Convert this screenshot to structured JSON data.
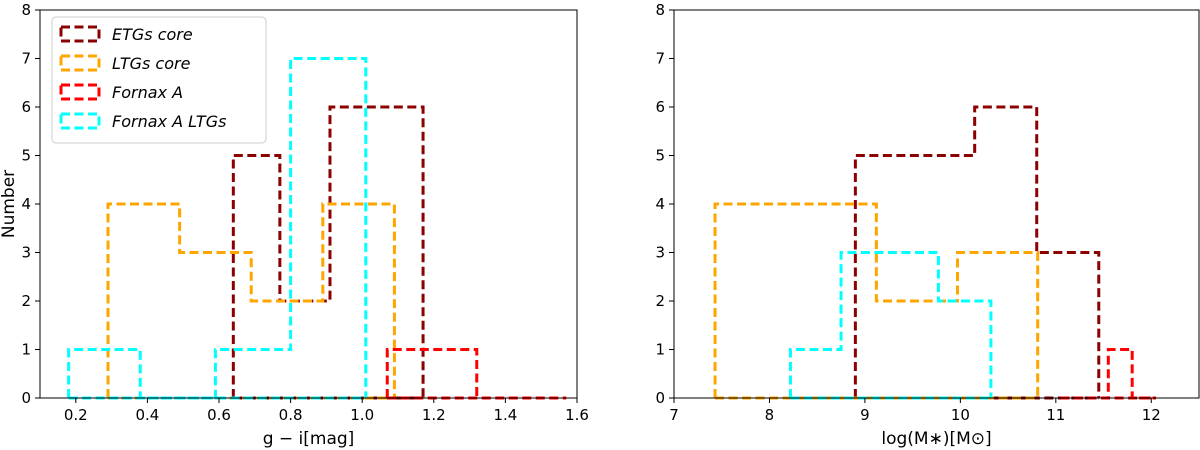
{
  "chart_data": [
    {
      "type": "histogram",
      "xlabel": "g − i[mag]",
      "ylabel": "Number",
      "xlim": [
        0.1,
        1.6
      ],
      "ylim": [
        0,
        8
      ],
      "xticks": [
        0.2,
        0.4,
        0.6,
        0.8,
        1.0,
        1.2,
        1.4,
        1.6
      ],
      "xtick_labels": [
        "0.2",
        "0.4",
        "0.6",
        "0.8",
        "1.0",
        "1.2",
        "1.4",
        "1.6"
      ],
      "yticks": [
        0,
        1,
        2,
        3,
        4,
        5,
        6,
        7,
        8
      ],
      "ytick_labels": [
        "0",
        "1",
        "2",
        "3",
        "4",
        "5",
        "6",
        "7",
        "8"
      ],
      "legend": {
        "placement": "top-left"
      },
      "series": [
        {
          "name": "ETGs core",
          "color": "#8b0000",
          "edges": [
            0.64,
            0.77,
            0.91,
            1.04,
            1.17
          ],
          "counts": [
            5,
            2,
            6,
            6
          ]
        },
        {
          "name": "LTGs core",
          "color": "#ffa500",
          "edges": [
            0.29,
            0.49,
            0.69,
            0.89,
            1.09
          ],
          "counts": [
            4,
            3,
            2,
            4
          ]
        },
        {
          "name": "Fornax A",
          "color": "#ff0000",
          "edges": [
            1.07,
            1.32
          ],
          "counts": [
            1
          ],
          "baseline_to": 1.57
        },
        {
          "name": "Fornax A LTGs",
          "color": "#00ffff",
          "edges": [
            0.18,
            0.38,
            0.59,
            0.8,
            1.01
          ],
          "counts": [
            1,
            0,
            1,
            7
          ]
        }
      ]
    },
    {
      "type": "histogram",
      "xlabel": "log(M∗)[M⊙]",
      "ylabel": "",
      "xlim": [
        7,
        12.5
      ],
      "ylim": [
        0,
        8
      ],
      "xticks": [
        7,
        8,
        9,
        10,
        11,
        12
      ],
      "xtick_labels": [
        "7",
        "8",
        "9",
        "10",
        "11",
        "12"
      ],
      "yticks": [
        0,
        1,
        2,
        3,
        4,
        5,
        6,
        7,
        8
      ],
      "ytick_labels": [
        "0",
        "1",
        "2",
        "3",
        "4",
        "5",
        "6",
        "7",
        "8"
      ],
      "series": [
        {
          "name": "ETGs core",
          "color": "#8b0000",
          "edges": [
            8.9,
            10.15,
            10.8,
            11.45
          ],
          "counts": [
            5,
            6,
            3
          ]
        },
        {
          "name": "LTGs core",
          "color": "#ffa500",
          "edges": [
            7.43,
            9.12,
            9.97,
            10.81
          ],
          "counts": [
            4,
            2,
            3
          ]
        },
        {
          "name": "Fornax A",
          "color": "#ff0000",
          "edges": [
            11.05,
            11.55,
            11.8,
            12.05
          ],
          "counts": [
            0,
            1,
            0
          ]
        },
        {
          "name": "Fornax A LTGs",
          "color": "#00ffff",
          "edges": [
            8.22,
            8.75,
            9.77,
            10.32
          ],
          "counts": [
            1,
            3,
            2
          ]
        }
      ]
    }
  ]
}
